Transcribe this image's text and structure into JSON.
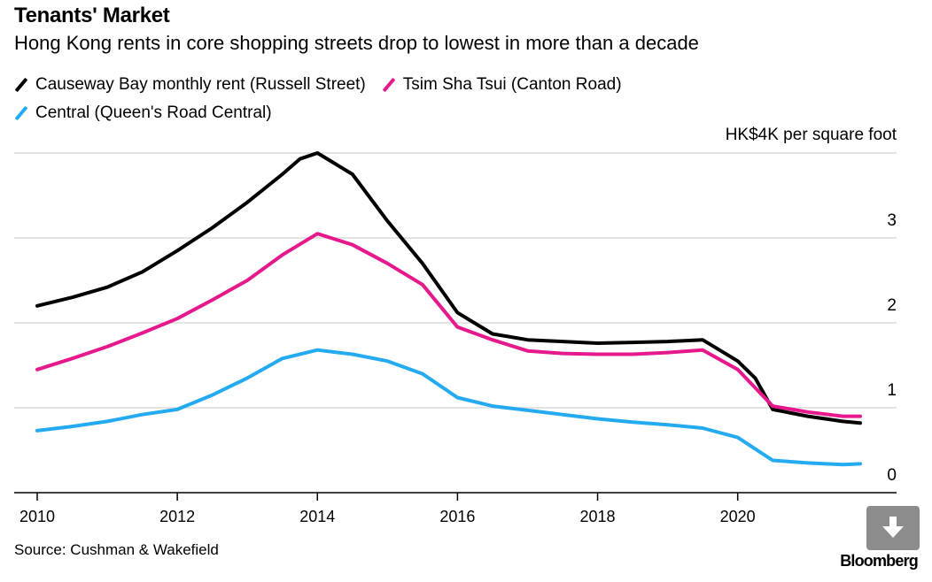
{
  "header": {
    "title": "Tenants' Market",
    "subtitle": "Hong Kong rents in core shopping streets drop to lowest in more than a decade"
  },
  "footer": {
    "source": "Source: Cushman & Wakefield",
    "brand": "Bloomberg",
    "download_icon": "download-arrow-icon"
  },
  "chart_data": {
    "type": "line",
    "title": "Tenants' Market",
    "subtitle": "Hong Kong rents in core shopping streets drop to lowest in more than a decade",
    "unit_label": "HK$4K per square foot",
    "xlim": [
      2010,
      2021.8
    ],
    "ylim": [
      0,
      4
    ],
    "x_ticks": [
      "2010",
      "2012",
      "2014",
      "2016",
      "2018",
      "2020"
    ],
    "y_ticks": [
      "0",
      "1",
      "2",
      "3"
    ],
    "grid": "horizontal",
    "legend_position": "top-left",
    "series": [
      {
        "name": "Causeway Bay monthly rent (Russell Street)",
        "color": "#000000",
        "points": [
          [
            2010,
            2.2
          ],
          [
            2010.5,
            2.3
          ],
          [
            2011,
            2.42
          ],
          [
            2011.5,
            2.6
          ],
          [
            2012,
            2.85
          ],
          [
            2012.5,
            3.12
          ],
          [
            2013,
            3.42
          ],
          [
            2013.5,
            3.75
          ],
          [
            2013.75,
            3.93
          ],
          [
            2014,
            4.0
          ],
          [
            2014.5,
            3.75
          ],
          [
            2015,
            3.2
          ],
          [
            2015.5,
            2.7
          ],
          [
            2016,
            2.12
          ],
          [
            2016.5,
            1.87
          ],
          [
            2017,
            1.8
          ],
          [
            2017.5,
            1.78
          ],
          [
            2018,
            1.76
          ],
          [
            2018.5,
            1.77
          ],
          [
            2019,
            1.78
          ],
          [
            2019.5,
            1.8
          ],
          [
            2020,
            1.55
          ],
          [
            2020.25,
            1.35
          ],
          [
            2020.5,
            0.98
          ],
          [
            2021,
            0.9
          ],
          [
            2021.5,
            0.84
          ],
          [
            2021.75,
            0.82
          ]
        ]
      },
      {
        "name": "Tsim Sha Tsui (Canton Road)",
        "color": "#e6198c",
        "points": [
          [
            2010,
            1.45
          ],
          [
            2010.5,
            1.58
          ],
          [
            2011,
            1.72
          ],
          [
            2011.5,
            1.88
          ],
          [
            2012,
            2.05
          ],
          [
            2012.5,
            2.27
          ],
          [
            2013,
            2.5
          ],
          [
            2013.5,
            2.8
          ],
          [
            2014,
            3.05
          ],
          [
            2014.5,
            2.92
          ],
          [
            2015,
            2.7
          ],
          [
            2015.5,
            2.45
          ],
          [
            2016,
            1.95
          ],
          [
            2016.5,
            1.8
          ],
          [
            2017,
            1.67
          ],
          [
            2017.5,
            1.64
          ],
          [
            2018,
            1.63
          ],
          [
            2018.5,
            1.63
          ],
          [
            2019,
            1.65
          ],
          [
            2019.5,
            1.68
          ],
          [
            2020,
            1.45
          ],
          [
            2020.5,
            1.02
          ],
          [
            2021,
            0.95
          ],
          [
            2021.5,
            0.9
          ],
          [
            2021.75,
            0.9
          ]
        ]
      },
      {
        "name": "Central (Queen's Road Central)",
        "color": "#24aaf0",
        "points": [
          [
            2010,
            0.73
          ],
          [
            2010.5,
            0.78
          ],
          [
            2011,
            0.84
          ],
          [
            2011.5,
            0.92
          ],
          [
            2012,
            0.98
          ],
          [
            2012.5,
            1.15
          ],
          [
            2013,
            1.35
          ],
          [
            2013.5,
            1.58
          ],
          [
            2014,
            1.68
          ],
          [
            2014.5,
            1.63
          ],
          [
            2015,
            1.55
          ],
          [
            2015.5,
            1.4
          ],
          [
            2016,
            1.12
          ],
          [
            2016.5,
            1.02
          ],
          [
            2017,
            0.97
          ],
          [
            2017.5,
            0.92
          ],
          [
            2018,
            0.87
          ],
          [
            2018.5,
            0.83
          ],
          [
            2019,
            0.8
          ],
          [
            2019.5,
            0.76
          ],
          [
            2020,
            0.65
          ],
          [
            2020.5,
            0.38
          ],
          [
            2021,
            0.35
          ],
          [
            2021.5,
            0.33
          ],
          [
            2021.75,
            0.34
          ]
        ]
      }
    ]
  }
}
